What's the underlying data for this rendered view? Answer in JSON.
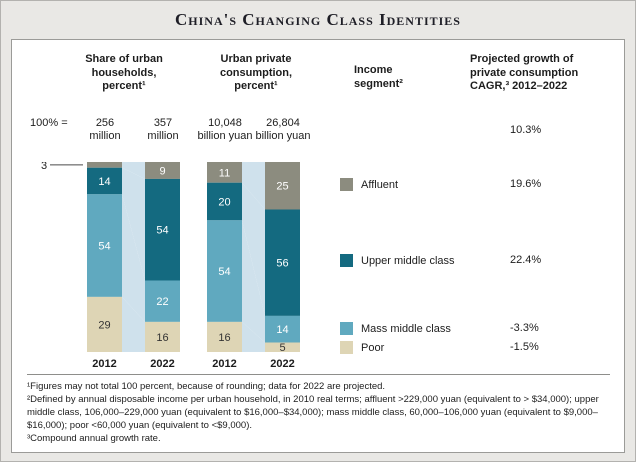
{
  "title": "China's Changing Class Identities",
  "header": {
    "cols": [
      {
        "label": "Share of urban\nhouseholds,\npercent¹"
      },
      {
        "label": "Urban private\nconsumption,\npercent¹"
      },
      {
        "label": "Income\nsegment²"
      },
      {
        "label": "Projected growth of\nprivate consumption\nCAGR,³ 2012–2022"
      }
    ]
  },
  "base_row": {
    "label": "100% =",
    "values": [
      "256\nmillion",
      "357\nmillion",
      "10,048\nbillion yuan",
      "26,804\nbillion yuan"
    ]
  },
  "chart_data": {
    "type": "bar",
    "variant": "stacked-100-percent-with-flows",
    "connector_color": "#cfe1ec",
    "total_growth_cagr": "10.3%",
    "segments": [
      {
        "name": "Affluent",
        "color": "#8c8c7f",
        "label_color": "#ffffff",
        "cagr": "19.6%"
      },
      {
        "name": "Upper middle class",
        "color": "#146a80",
        "label_color": "#ffffff",
        "cagr": "22.4%"
      },
      {
        "name": "Mass middle class",
        "color": "#60a9bf",
        "label_color": "#ffffff",
        "cagr": "-3.3%"
      },
      {
        "name": "Poor",
        "color": "#ded5b5",
        "label_color": "#333333",
        "cagr": "-1.5%"
      }
    ],
    "charts": [
      {
        "title": "Share of urban households, percent",
        "categories": [
          "2012",
          "2022"
        ],
        "totals": [
          "256 million",
          "357 million"
        ],
        "values": [
          [
            3,
            14,
            54,
            29
          ],
          [
            9,
            54,
            22,
            16
          ]
        ],
        "external_labels": [
          {
            "bar": 0,
            "segment": 0
          }
        ]
      },
      {
        "title": "Urban private consumption, percent",
        "categories": [
          "2012",
          "2022"
        ],
        "totals": [
          "10,048 billion yuan",
          "26,804 billion yuan"
        ],
        "values": [
          [
            11,
            20,
            54,
            16
          ],
          [
            25,
            56,
            14,
            5
          ]
        ],
        "external_labels": []
      }
    ]
  },
  "footnotes": [
    "¹Figures may not total 100 percent, because of rounding; data for 2022 are projected.",
    "²Defined by annual disposable income per urban household, in 2010 real terms; affluent >229,000 yuan (equivalent to > $34,000); upper middle class, 106,000–229,000 yuan (equivalent to $16,000–$34,000); mass middle class, 60,000–106,000 yuan (equivalent to $9,000–$16,000); poor <60,000 yuan (equivalent to <$9,000).",
    "³Compound annual growth rate."
  ]
}
